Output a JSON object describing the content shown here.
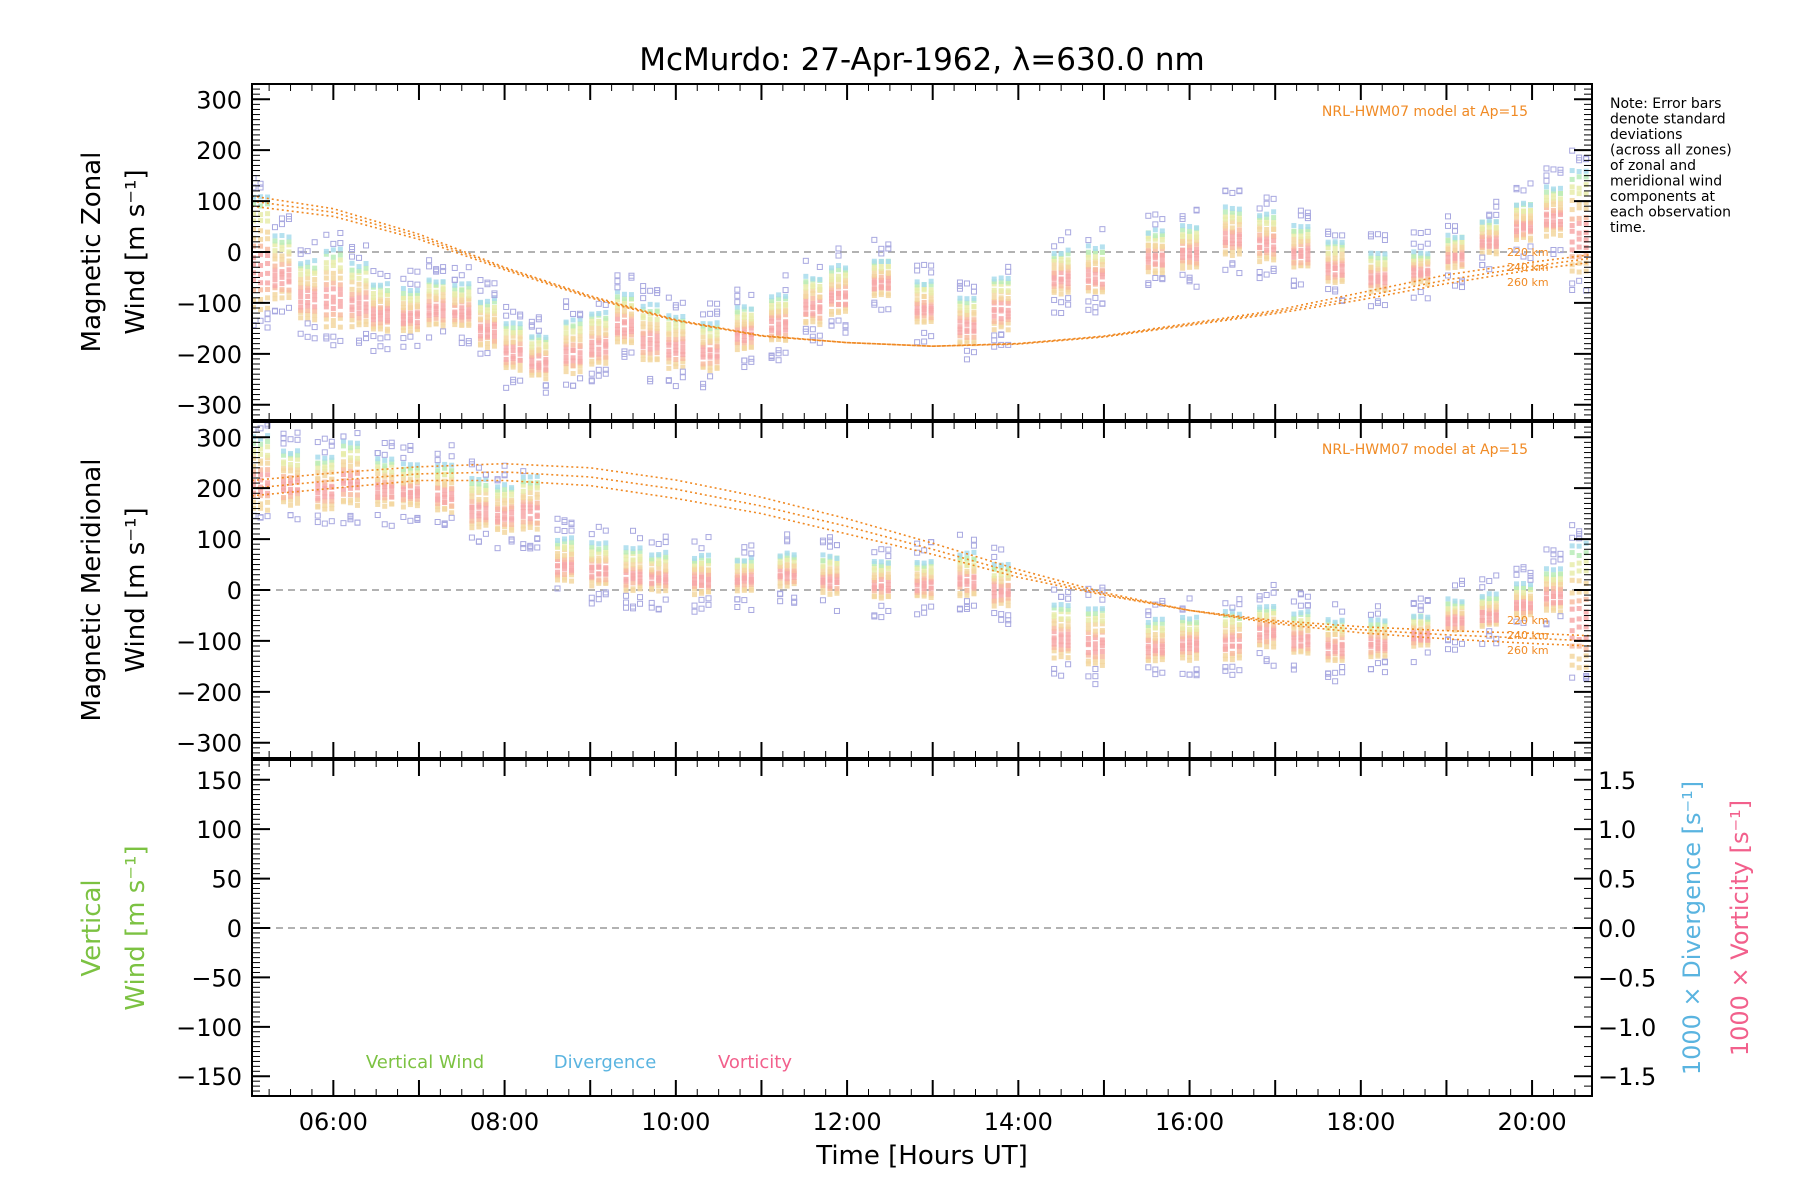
{
  "chart_data": {
    "type": "scatter",
    "title": "McMurdo: 27-Apr-1962, λ=630.0 nm",
    "xlabel": "Time [Hours UT]",
    "xlim": [
      5.05,
      20.7
    ],
    "x_ticks": [
      {
        "value": 6,
        "label": "06:00"
      },
      {
        "value": 8,
        "label": "08:00"
      },
      {
        "value": 10,
        "label": "10:00"
      },
      {
        "value": 12,
        "label": "12:00"
      },
      {
        "value": 14,
        "label": "14:00"
      },
      {
        "value": 16,
        "label": "16:00"
      },
      {
        "value": 18,
        "label": "18:00"
      },
      {
        "value": 20,
        "label": "20:00"
      }
    ],
    "note": "Note: Error bars denote standard deviations (across all zones) of zonal and meridional wind components at each observation time.",
    "note_lines": [
      "Note: Error bars",
      "denote standard",
      "deviations",
      "(across all zones)",
      "of zonal and",
      "meridional wind",
      "components at",
      "each observation",
      "time."
    ],
    "colors": {
      "model": "#f08a24",
      "zero_line": "#999999",
      "vertical": "#7cc242",
      "divergence": "#5ab4e0",
      "vorticity": "#f2608c",
      "points": [
        "#f7a8a8",
        "#f8bba0",
        "#f3d7a0",
        "#e8ecaa",
        "#b8ecb8",
        "#a8dcec",
        "#b0b0ec"
      ]
    },
    "panels": [
      {
        "id": "zonal",
        "ylabel_lines": [
          "Magnetic Zonal",
          "Wind [m s⁻¹]"
        ],
        "ylim": [
          -330,
          330
        ],
        "y_ticks": [
          -300,
          -200,
          -100,
          0,
          100,
          200,
          300
        ],
        "model_label": "NRL-HWM07 model at Ap=15",
        "model_series": [
          {
            "name": "220 km",
            "points": [
              [
                5.05,
                90
              ],
              [
                6,
                70
              ],
              [
                7,
                25
              ],
              [
                8,
                -35
              ],
              [
                9,
                -90
              ],
              [
                10,
                -135
              ],
              [
                11,
                -165
              ],
              [
                12,
                -178
              ],
              [
                13,
                -185
              ],
              [
                14,
                -180
              ],
              [
                15,
                -165
              ],
              [
                16,
                -140
              ],
              [
                17,
                -115
              ],
              [
                18,
                -80
              ],
              [
                19,
                -45
              ],
              [
                20,
                -20
              ],
              [
                20.7,
                -5
              ]
            ]
          },
          {
            "name": "240 km",
            "points": [
              [
                5.05,
                100
              ],
              [
                6,
                78
              ],
              [
                7,
                30
              ],
              [
                8,
                -32
              ],
              [
                9,
                -88
              ],
              [
                10,
                -134
              ],
              [
                11,
                -165
              ],
              [
                12,
                -178
              ],
              [
                13,
                -185
              ],
              [
                14,
                -180
              ],
              [
                15,
                -166
              ],
              [
                16,
                -142
              ],
              [
                17,
                -118
              ],
              [
                18,
                -88
              ],
              [
                19,
                -55
              ],
              [
                20,
                -28
              ],
              [
                20.7,
                -12
              ]
            ]
          },
          {
            "name": "260 km",
            "points": [
              [
                5.05,
                110
              ],
              [
                6,
                85
              ],
              [
                7,
                35
              ],
              [
                8,
                -30
              ],
              [
                9,
                -86
              ],
              [
                10,
                -133
              ],
              [
                11,
                -164
              ],
              [
                12,
                -178
              ],
              [
                13,
                -185
              ],
              [
                14,
                -181
              ],
              [
                15,
                -167
              ],
              [
                16,
                -144
              ],
              [
                17,
                -121
              ],
              [
                18,
                -94
              ],
              [
                19,
                -62
              ],
              [
                20,
                -35
              ],
              [
                20.7,
                -20
              ]
            ]
          }
        ],
        "observation_clusters": [
          {
            "t": 5.15,
            "y": 0,
            "spread": 110
          },
          {
            "t": 5.4,
            "y": -30,
            "spread": 60
          },
          {
            "t": 5.7,
            "y": -75,
            "spread": 55
          },
          {
            "t": 6.0,
            "y": -70,
            "spread": 75
          },
          {
            "t": 6.3,
            "y": -85,
            "spread": 60
          },
          {
            "t": 6.55,
            "y": -110,
            "spread": 45
          },
          {
            "t": 6.9,
            "y": -115,
            "spread": 40
          },
          {
            "t": 7.2,
            "y": -100,
            "spread": 45
          },
          {
            "t": 7.5,
            "y": -105,
            "spread": 40
          },
          {
            "t": 7.8,
            "y": -140,
            "spread": 45
          },
          {
            "t": 8.1,
            "y": -185,
            "spread": 45
          },
          {
            "t": 8.4,
            "y": -205,
            "spread": 40
          },
          {
            "t": 8.8,
            "y": -185,
            "spread": 50
          },
          {
            "t": 9.1,
            "y": -170,
            "spread": 50
          },
          {
            "t": 9.4,
            "y": -130,
            "spread": 50
          },
          {
            "t": 9.7,
            "y": -160,
            "spread": 55
          },
          {
            "t": 10.0,
            "y": -175,
            "spread": 50
          },
          {
            "t": 10.4,
            "y": -185,
            "spread": 45
          },
          {
            "t": 10.8,
            "y": -150,
            "spread": 40
          },
          {
            "t": 11.2,
            "y": -130,
            "spread": 45
          },
          {
            "t": 11.6,
            "y": -95,
            "spread": 45
          },
          {
            "t": 11.9,
            "y": -75,
            "spread": 45
          },
          {
            "t": 12.4,
            "y": -50,
            "spread": 35
          },
          {
            "t": 12.9,
            "y": -100,
            "spread": 40
          },
          {
            "t": 13.4,
            "y": -135,
            "spread": 45
          },
          {
            "t": 13.8,
            "y": -100,
            "spread": 50
          },
          {
            "t": 14.5,
            "y": -40,
            "spread": 40
          },
          {
            "t": 14.9,
            "y": -35,
            "spread": 45
          },
          {
            "t": 15.6,
            "y": 0,
            "spread": 40
          },
          {
            "t": 16.0,
            "y": 10,
            "spread": 40
          },
          {
            "t": 16.5,
            "y": 40,
            "spread": 45
          },
          {
            "t": 16.9,
            "y": 30,
            "spread": 45
          },
          {
            "t": 17.3,
            "y": 10,
            "spread": 40
          },
          {
            "t": 17.7,
            "y": -20,
            "spread": 40
          },
          {
            "t": 18.2,
            "y": -40,
            "spread": 35
          },
          {
            "t": 18.7,
            "y": -30,
            "spread": 30
          },
          {
            "t": 19.1,
            "y": 0,
            "spread": 30
          },
          {
            "t": 19.5,
            "y": 30,
            "spread": 30
          },
          {
            "t": 19.9,
            "y": 60,
            "spread": 35
          },
          {
            "t": 20.25,
            "y": 80,
            "spread": 45
          },
          {
            "t": 20.55,
            "y": 60,
            "spread": 100
          }
        ]
      },
      {
        "id": "meridional",
        "ylabel_lines": [
          "Magnetic Meridional",
          "Wind [m s⁻¹]"
        ],
        "ylim": [
          -330,
          330
        ],
        "y_ticks": [
          -300,
          -200,
          -100,
          0,
          100,
          200,
          300
        ],
        "model_label": "NRL-HWM07 model at Ap=15",
        "model_series": [
          {
            "name": "220 km",
            "points": [
              [
                5.05,
                185
              ],
              [
                6,
                200
              ],
              [
                7,
                215
              ],
              [
                8,
                215
              ],
              [
                9,
                205
              ],
              [
                10,
                180
              ],
              [
                11,
                150
              ],
              [
                12,
                110
              ],
              [
                13,
                70
              ],
              [
                14,
                25
              ],
              [
                15,
                -10
              ],
              [
                16,
                -40
              ],
              [
                17,
                -60
              ],
              [
                18,
                -72
              ],
              [
                19,
                -80
              ],
              [
                20,
                -85
              ],
              [
                20.7,
                -90
              ]
            ]
          },
          {
            "name": "240 km",
            "points": [
              [
                5.05,
                200
              ],
              [
                6,
                215
              ],
              [
                7,
                228
              ],
              [
                8,
                232
              ],
              [
                9,
                222
              ],
              [
                10,
                198
              ],
              [
                11,
                165
              ],
              [
                12,
                125
              ],
              [
                13,
                80
              ],
              [
                14,
                32
              ],
              [
                15,
                -8
              ],
              [
                16,
                -40
              ],
              [
                17,
                -63
              ],
              [
                18,
                -78
              ],
              [
                19,
                -88
              ],
              [
                20,
                -95
              ],
              [
                20.7,
                -100
              ]
            ]
          },
          {
            "name": "260 km",
            "points": [
              [
                5.05,
                215
              ],
              [
                6,
                230
              ],
              [
                7,
                242
              ],
              [
                8,
                248
              ],
              [
                9,
                240
              ],
              [
                10,
                216
              ],
              [
                11,
                182
              ],
              [
                12,
                140
              ],
              [
                13,
                92
              ],
              [
                14,
                40
              ],
              [
                15,
                -5
              ],
              [
                16,
                -40
              ],
              [
                17,
                -66
              ],
              [
                18,
                -84
              ],
              [
                19,
                -96
              ],
              [
                20,
                -105
              ],
              [
                20.7,
                -110
              ]
            ]
          }
        ],
        "observation_clusters": [
          {
            "t": 5.15,
            "y": 230,
            "spread": 70
          },
          {
            "t": 5.5,
            "y": 220,
            "spread": 50
          },
          {
            "t": 5.9,
            "y": 210,
            "spread": 50
          },
          {
            "t": 6.2,
            "y": 230,
            "spread": 60
          },
          {
            "t": 6.6,
            "y": 210,
            "spread": 45
          },
          {
            "t": 6.9,
            "y": 205,
            "spread": 40
          },
          {
            "t": 7.3,
            "y": 200,
            "spread": 45
          },
          {
            "t": 7.7,
            "y": 170,
            "spread": 45
          },
          {
            "t": 8.0,
            "y": 160,
            "spread": 45
          },
          {
            "t": 8.3,
            "y": 170,
            "spread": 50
          },
          {
            "t": 8.7,
            "y": 60,
            "spread": 40
          },
          {
            "t": 9.1,
            "y": 50,
            "spread": 40
          },
          {
            "t": 9.5,
            "y": 40,
            "spread": 40
          },
          {
            "t": 9.8,
            "y": 35,
            "spread": 35
          },
          {
            "t": 10.3,
            "y": 30,
            "spread": 35
          },
          {
            "t": 10.8,
            "y": 30,
            "spread": 30
          },
          {
            "t": 11.3,
            "y": 40,
            "spread": 30
          },
          {
            "t": 11.8,
            "y": 30,
            "spread": 35
          },
          {
            "t": 12.4,
            "y": 20,
            "spread": 35
          },
          {
            "t": 12.9,
            "y": 20,
            "spread": 35
          },
          {
            "t": 13.4,
            "y": 30,
            "spread": 40
          },
          {
            "t": 13.8,
            "y": 10,
            "spread": 40
          },
          {
            "t": 14.5,
            "y": -80,
            "spread": 50
          },
          {
            "t": 14.9,
            "y": -90,
            "spread": 55
          },
          {
            "t": 15.6,
            "y": -100,
            "spread": 40
          },
          {
            "t": 16.0,
            "y": -95,
            "spread": 40
          },
          {
            "t": 16.5,
            "y": -90,
            "spread": 45
          },
          {
            "t": 16.9,
            "y": -70,
            "spread": 40
          },
          {
            "t": 17.3,
            "y": -85,
            "spread": 40
          },
          {
            "t": 17.7,
            "y": -100,
            "spread": 40
          },
          {
            "t": 18.2,
            "y": -95,
            "spread": 35
          },
          {
            "t": 18.7,
            "y": -80,
            "spread": 30
          },
          {
            "t": 19.1,
            "y": -50,
            "spread": 30
          },
          {
            "t": 19.5,
            "y": -40,
            "spread": 30
          },
          {
            "t": 19.9,
            "y": -20,
            "spread": 30
          },
          {
            "t": 20.25,
            "y": 0,
            "spread": 40
          },
          {
            "t": 20.55,
            "y": -30,
            "spread": 120
          }
        ]
      },
      {
        "id": "vertical",
        "ylabel_lines": [
          "Vertical",
          "Wind [m s⁻¹]"
        ],
        "ylim": [
          -170,
          170
        ],
        "y_ticks": [
          -150,
          -100,
          -50,
          0,
          50,
          100,
          150
        ],
        "y2lim": [
          -1.7,
          1.7
        ],
        "y2_ticks": [
          -1.5,
          -1.0,
          -0.5,
          0.0,
          0.5,
          1.0,
          1.5
        ],
        "y2_tick_labels": [
          "−1.5",
          "−1.0",
          "−0.5",
          "0.0",
          "0.5",
          "1.0",
          "1.5"
        ],
        "y2label_divergence": "1000 × Divergence [s⁻¹]",
        "y2label_vorticity": "1000 × Vorticity [s⁻¹]",
        "legend": [
          "Vertical Wind",
          "Divergence",
          "Vorticity"
        ]
      }
    ]
  }
}
